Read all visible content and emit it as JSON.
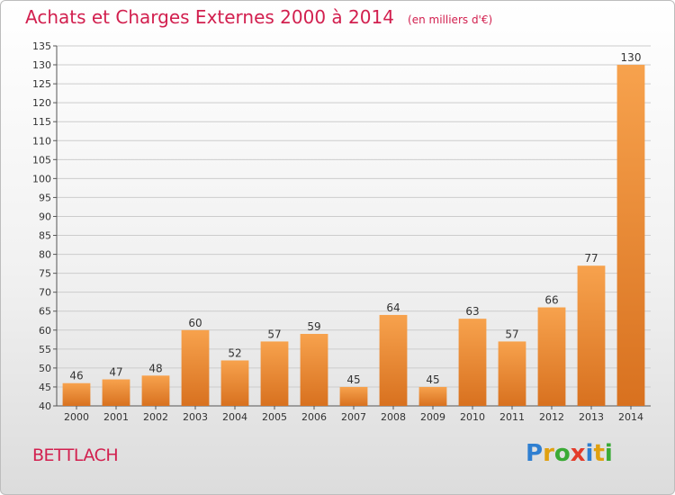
{
  "header": {
    "title": "Achats et Charges Externes 2000 à 2014",
    "unit": "(en milliers d'€)"
  },
  "footer": {
    "commune": "BETTLACH",
    "logo_letters": [
      "P",
      "r",
      "o",
      "x",
      "i",
      "t",
      "i"
    ],
    "logo_colors": [
      "#2f7fd1",
      "#e0a010",
      "#3aaa35",
      "#e43b2a",
      "#2f7fd1",
      "#e0a010",
      "#3aaa35"
    ]
  },
  "colors": {
    "bar_light": "#f7a24d",
    "bar_dark": "#d8711f",
    "title": "#d2204f",
    "grid": "#cccccc"
  },
  "chart_data": {
    "type": "bar",
    "title": "Achats et Charges Externes 2000 à 2014",
    "categories": [
      "2000",
      "2001",
      "2002",
      "2003",
      "2004",
      "2005",
      "2006",
      "2007",
      "2008",
      "2009",
      "2010",
      "2011",
      "2012",
      "2013",
      "2014"
    ],
    "values": [
      46,
      47,
      48,
      60,
      52,
      57,
      59,
      45,
      64,
      45,
      63,
      57,
      66,
      77,
      130
    ],
    "ylim": [
      40,
      135
    ],
    "ytick_step": 5,
    "grid": true,
    "data_labels": true
  }
}
